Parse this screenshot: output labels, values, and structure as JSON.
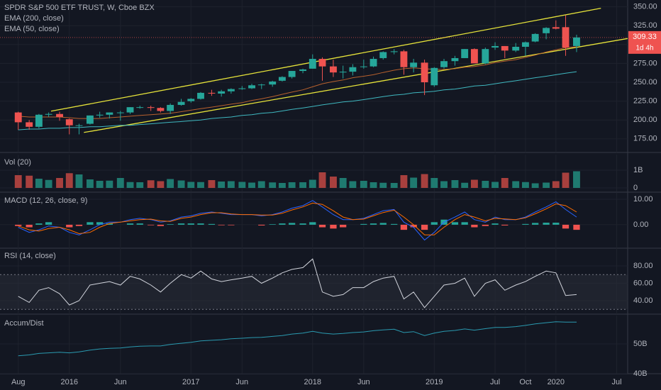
{
  "chart_data": [
    {
      "type": "candlestick",
      "title": "SPDR S&P 500 ETF TRUST, W, Cboe BZX",
      "countdown": "1d 4h",
      "up_color": "#26a69a",
      "down_color": "#ef5350",
      "x": [
        2015.58,
        2015.67,
        2015.75,
        2015.83,
        2015.92,
        2016.0,
        2016.08,
        2016.17,
        2016.25,
        2016.33,
        2016.42,
        2016.5,
        2016.58,
        2016.67,
        2016.75,
        2016.83,
        2016.92,
        2017.0,
        2017.08,
        2017.17,
        2017.25,
        2017.33,
        2017.42,
        2017.5,
        2017.58,
        2017.67,
        2017.75,
        2017.83,
        2017.92,
        2018.0,
        2018.08,
        2018.17,
        2018.25,
        2018.33,
        2018.42,
        2018.5,
        2018.58,
        2018.67,
        2018.75,
        2018.83,
        2018.92,
        2019.0,
        2019.08,
        2019.17,
        2019.25,
        2019.33,
        2019.42,
        2019.5,
        2019.58,
        2019.67,
        2019.75,
        2019.83,
        2019.92,
        2020.0,
        2020.08,
        2020.17
      ],
      "open": [
        210,
        197,
        191,
        207,
        208,
        201,
        193,
        195,
        206,
        207,
        210,
        210,
        217,
        217,
        216,
        212,
        220,
        225,
        228,
        236,
        235,
        238,
        241,
        242,
        247,
        247,
        252,
        257,
        265,
        268,
        281,
        271,
        263,
        264,
        271,
        271,
        282,
        290,
        291,
        270,
        276,
        246,
        270,
        278,
        282,
        294,
        275,
        296,
        298,
        292,
        297,
        304,
        315,
        323,
        323,
        298
      ],
      "high": [
        211,
        200,
        208,
        210,
        211,
        202,
        195,
        206,
        211,
        210,
        212,
        217,
        219,
        219,
        217,
        222,
        228,
        229,
        237,
        240,
        240,
        242,
        245,
        248,
        248,
        252,
        258,
        265,
        268,
        287,
        283,
        280,
        272,
        274,
        280,
        284,
        291,
        294,
        293,
        281,
        280,
        270,
        281,
        285,
        294,
        295,
        296,
        303,
        298,
        302,
        304,
        315,
        323,
        332,
        339,
        313
      ],
      "low": [
        187,
        187,
        189,
        204,
        199,
        181,
        181,
        194,
        203,
        202,
        199,
        208,
        215,
        212,
        210,
        208,
        219,
        223,
        227,
        232,
        231,
        235,
        240,
        241,
        241,
        244,
        251,
        255,
        262,
        268,
        252,
        257,
        255,
        259,
        268,
        270,
        280,
        287,
        260,
        263,
        233,
        244,
        268,
        272,
        282,
        275,
        274,
        293,
        282,
        290,
        285,
        303,
        307,
        320,
        285,
        290
      ],
      "close": [
        197,
        191,
        207,
        208,
        204,
        193,
        193,
        206,
        207,
        210,
        210,
        217,
        217,
        216,
        212,
        220,
        224,
        228,
        236,
        235,
        238,
        241,
        242,
        246,
        247,
        251,
        257,
        265,
        267,
        281,
        271,
        263,
        264,
        270,
        271,
        281,
        290,
        291,
        270,
        276,
        250,
        269,
        278,
        282,
        294,
        275,
        294,
        298,
        292,
        297,
        303,
        314,
        322,
        321,
        296,
        309.33
      ],
      "lines": [
        {
          "name": "EMA (200, close)",
          "color": "#3fb8c0",
          "values": [
            187,
            188,
            188,
            189,
            189,
            190,
            190,
            191,
            191,
            192,
            193,
            193,
            194,
            195,
            196,
            197,
            198,
            199,
            200,
            202,
            203,
            204,
            206,
            207,
            209,
            210,
            212,
            214,
            216,
            218,
            220,
            222,
            224,
            225,
            227,
            229,
            231,
            233,
            234,
            236,
            237,
            238,
            240,
            241,
            243,
            245,
            246,
            248,
            250,
            252,
            254,
            256,
            258,
            260,
            262,
            264
          ]
        },
        {
          "name": "EMA (50, close)",
          "color": "#b8612e",
          "values": [
            205,
            204,
            204,
            204,
            204,
            203,
            202,
            202,
            202,
            203,
            204,
            205,
            206,
            207,
            208,
            209,
            211,
            213,
            215,
            217,
            219,
            221,
            223,
            226,
            228,
            231,
            234,
            237,
            240,
            244,
            248,
            251,
            253,
            256,
            258,
            260,
            263,
            266,
            268,
            269,
            268,
            267,
            267,
            268,
            270,
            271,
            273,
            276,
            278,
            280,
            283,
            286,
            290,
            293,
            296,
            297
          ]
        }
      ],
      "trendlines": [
        {
          "color": "#e6e33a",
          "points": [
            [
              2015.85,
              211.7
            ],
            [
              2020.37,
              348.1
            ]
          ]
        },
        {
          "color": "#e6e33a",
          "points": [
            [
              2016.12,
              183.5
            ],
            [
              2020.59,
              308
            ]
          ]
        }
      ],
      "xlim": [
        2015.43,
        2020.59
      ],
      "xticks": [
        {
          "value": 2015.58,
          "label": "Aug"
        },
        2016,
        {
          "value": 2016.42,
          "label": "Jun"
        },
        2017,
        {
          "value": 2017.42,
          "label": "Jun"
        },
        2018,
        {
          "value": 2018.42,
          "label": "Jun"
        },
        2019,
        {
          "value": 2019.5,
          "label": "Jul"
        },
        {
          "value": 2019.75,
          "label": "Oct"
        },
        2020,
        {
          "value": 2020.5,
          "label": "Jul"
        }
      ],
      "ylim": [
        157,
        359
      ],
      "yticks": [
        {
          "value": 175,
          "label": "175.00"
        },
        {
          "value": 200,
          "label": "200.00"
        },
        {
          "value": 225,
          "label": "225.00"
        },
        {
          "value": 250,
          "label": "250.00"
        },
        {
          "value": 275,
          "label": "275.00"
        },
        {
          "value": 300,
          "label": "300.00"
        },
        {
          "value": 325,
          "label": "325.00"
        },
        {
          "value": 350,
          "label": "350.00"
        }
      ]
    },
    {
      "type": "bar",
      "title": "Vol (20)",
      "up_color": "#1f7a70",
      "down_color": "#a8403e",
      "values": [
        720000000.0,
        690000000.0,
        520000000.0,
        450000000.0,
        560000000.0,
        830000000.0,
        760000000.0,
        480000000.0,
        400000000.0,
        410000000.0,
        560000000.0,
        330000000.0,
        320000000.0,
        430000000.0,
        380000000.0,
        500000000.0,
        420000000.0,
        340000000.0,
        330000000.0,
        440000000.0,
        360000000.0,
        380000000.0,
        340000000.0,
        300000000.0,
        380000000.0,
        310000000.0,
        280000000.0,
        320000000.0,
        320000000.0,
        460000000.0,
        880000000.0,
        640000000.0,
        560000000.0,
        380000000.0,
        400000000.0,
        320000000.0,
        290000000.0,
        280000000.0,
        720000000.0,
        580000000.0,
        780000000.0,
        560000000.0,
        380000000.0,
        440000000.0,
        290000000.0,
        460000000.0,
        400000000.0,
        340000000.0,
        560000000.0,
        380000000.0,
        330000000.0,
        260000000.0,
        300000000.0,
        380000000.0,
        860000000.0,
        940000000.0
      ],
      "ylim": [
        -200000000.0,
        1880000000.0
      ],
      "yticks": [
        0,
        {
          "value": 1000000000.0,
          "label": "1B"
        }
      ]
    },
    {
      "type": "macd",
      "title": "MACD (12, 26, close, 9)",
      "series": [
        {
          "color": "#2962ff",
          "values": [
            -1,
            -3,
            -2,
            -0.5,
            -1,
            -3,
            -4,
            -2,
            0,
            1,
            1,
            2,
            2.5,
            2,
            1,
            1.5,
            3,
            3.5,
            4.5,
            5,
            4.5,
            4,
            4,
            4,
            3.5,
            4,
            5,
            6.5,
            7.5,
            9.5,
            7,
            4,
            2,
            2,
            2.5,
            4,
            5.5,
            6,
            1,
            -1,
            -6,
            -3,
            1,
            3,
            5,
            2,
            1,
            3,
            2,
            2,
            3,
            5,
            7,
            9,
            6,
            3
          ]
        },
        {
          "color": "#ff6d00",
          "values": [
            -0.5,
            -2,
            -2.5,
            -1.5,
            -1,
            -2,
            -3.5,
            -3,
            -1,
            0.5,
            1,
            1.5,
            2,
            2.2,
            1.5,
            1.3,
            2.5,
            3,
            4,
            4.7,
            4.7,
            4.2,
            4,
            4,
            3.8,
            3.8,
            4.5,
            5.8,
            7,
            8.5,
            8,
            5.5,
            3,
            2,
            2.2,
            3.5,
            4.8,
            5.7,
            3,
            0,
            -4,
            -4,
            -1,
            2,
            4,
            3,
            1.5,
            2.5,
            2.3,
            2,
            2.7,
            4.3,
            6.2,
            8.2,
            7.5,
            5
          ]
        }
      ],
      "histogram": [
        -0.5,
        -1,
        0.5,
        1,
        0,
        -1,
        -0.5,
        1,
        1,
        0.5,
        0,
        0.5,
        0.5,
        -0.2,
        -0.5,
        0.2,
        0.5,
        0.5,
        0.5,
        0.3,
        -0.2,
        -0.2,
        0,
        0,
        -0.3,
        0.2,
        0.5,
        0.7,
        0.5,
        1,
        -1,
        -1.5,
        -1,
        0,
        0.3,
        0.5,
        0.7,
        0.3,
        -2,
        -1,
        -2,
        1,
        2,
        1,
        1,
        -1,
        -0.5,
        0.5,
        -0.3,
        0,
        0.3,
        0.7,
        0.8,
        0.8,
        -1.5,
        -2
      ],
      "up_color": "#26a69a",
      "down_color": "#ef5350",
      "ylim": [
        -9.2,
        12.5
      ],
      "yticks": [
        {
          "value": 0,
          "label": "0.00"
        },
        {
          "value": 10,
          "label": "10.00"
        }
      ]
    },
    {
      "type": "line",
      "title": "RSI (14, close)",
      "color": "#d1d4dc",
      "band": [
        30,
        70
      ],
      "values": [
        45,
        38,
        52,
        55,
        48,
        35,
        40,
        58,
        60,
        62,
        58,
        68,
        65,
        58,
        50,
        60,
        70,
        66,
        74,
        65,
        62,
        64,
        66,
        68,
        60,
        66,
        72,
        76,
        78,
        88,
        50,
        45,
        47,
        55,
        55,
        62,
        66,
        68,
        42,
        50,
        32,
        45,
        58,
        60,
        66,
        45,
        60,
        64,
        52,
        58,
        62,
        68,
        74,
        72,
        46,
        47
      ],
      "ylim": [
        24.5,
        100.4
      ],
      "yticks": [
        {
          "value": 40,
          "label": "40.00"
        },
        {
          "value": 60,
          "label": "60.00"
        },
        {
          "value": 80,
          "label": "80.00"
        }
      ]
    },
    {
      "type": "line",
      "title": "Accum/Dist",
      "color": "#2a9ab0",
      "values": [
        46000000000.0,
        46300000000.0,
        46800000000.0,
        47000000000.0,
        47200000000.0,
        47000000000.0,
        47300000000.0,
        47900000000.0,
        48300000000.0,
        48500000000.0,
        48600000000.0,
        49000000000.0,
        49200000000.0,
        49300000000.0,
        49300000000.0,
        49800000000.0,
        50200000000.0,
        50500000000.0,
        51000000000.0,
        51200000000.0,
        51400000000.0,
        51700000000.0,
        51900000000.0,
        52100000000.0,
        52200000000.0,
        52500000000.0,
        52800000000.0,
        53300000000.0,
        53600000000.0,
        54200000000.0,
        53600000000.0,
        53300000000.0,
        53500000000.0,
        53800000000.0,
        54000000000.0,
        54400000000.0,
        54700000000.0,
        54900000000.0,
        53800000000.0,
        54100000000.0,
        52800000000.0,
        53600000000.0,
        54200000000.0,
        54500000000.0,
        55000000000.0,
        54600000000.0,
        55100000000.0,
        55500000000.0,
        55500000000.0,
        55800000000.0,
        56200000000.0,
        56700000000.0,
        57100000000.0,
        57400000000.0,
        57300000000.0,
        57300000000.0
      ],
      "ylim": [
        40000000000.0,
        59500000000.0
      ],
      "yticks": [
        {
          "value": 40000000000.0,
          "label": "40B"
        },
        {
          "value": 50000000000.0,
          "label": "50B"
        }
      ]
    }
  ]
}
